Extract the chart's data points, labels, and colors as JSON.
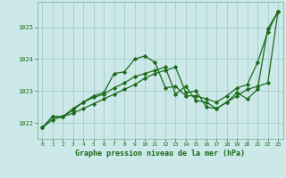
{
  "title": "Graphe pression niveau de la mer (hPa)",
  "background_color": "#cce8e8",
  "grid_color": "#aacccc",
  "line_color": "#1a6b1a",
  "xlim": [
    -0.5,
    23.5
  ],
  "ylim": [
    1021.5,
    1025.8
  ],
  "yticks": [
    1022,
    1023,
    1024,
    1025
  ],
  "xticks": [
    0,
    1,
    2,
    3,
    4,
    5,
    6,
    7,
    8,
    9,
    10,
    11,
    12,
    13,
    14,
    15,
    16,
    17,
    18,
    19,
    20,
    21,
    22,
    23
  ],
  "series1_x": [
    0,
    1,
    2,
    3,
    4,
    5,
    6,
    7,
    8,
    9,
    10,
    11,
    12,
    13,
    14,
    15,
    16,
    17,
    18,
    19,
    20,
    21,
    22,
    23
  ],
  "series1_y": [
    1021.85,
    1022.2,
    1022.2,
    1022.45,
    1022.65,
    1022.85,
    1022.95,
    1023.55,
    1023.6,
    1024.0,
    1024.1,
    1023.9,
    1023.1,
    1023.15,
    1022.85,
    1022.85,
    1022.75,
    1022.65,
    1022.85,
    1023.1,
    1023.2,
    1023.9,
    1024.85,
    1025.5
  ],
  "series2_x": [
    0,
    1,
    2,
    3,
    4,
    5,
    6,
    7,
    8,
    9,
    10,
    11,
    12,
    13,
    14,
    15,
    16,
    17,
    18,
    19,
    20,
    21,
    22,
    23
  ],
  "series2_y": [
    1021.85,
    1022.2,
    1022.2,
    1022.4,
    1022.65,
    1022.8,
    1022.9,
    1023.1,
    1023.25,
    1023.45,
    1023.55,
    1023.65,
    1023.75,
    1022.9,
    1023.15,
    1022.7,
    1022.65,
    1022.45,
    1022.65,
    1022.95,
    1022.75,
    1023.05,
    1024.95,
    1025.5
  ],
  "series3_x": [
    0,
    1,
    2,
    3,
    4,
    5,
    6,
    7,
    8,
    9,
    10,
    11,
    12,
    13,
    14,
    15,
    16,
    17,
    18,
    19,
    20,
    21,
    22,
    23
  ],
  "series3_y": [
    1021.85,
    1022.1,
    1022.2,
    1022.3,
    1022.45,
    1022.6,
    1022.75,
    1022.9,
    1023.05,
    1023.2,
    1023.4,
    1023.55,
    1023.65,
    1023.75,
    1022.95,
    1023.0,
    1022.5,
    1022.45,
    1022.65,
    1022.85,
    1023.05,
    1023.15,
    1023.25,
    1025.5
  ]
}
